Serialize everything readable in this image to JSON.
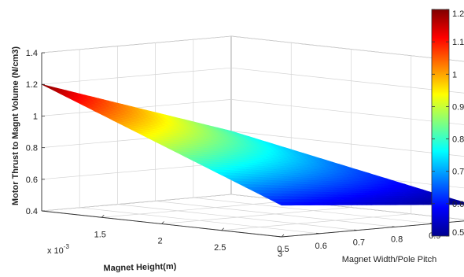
{
  "chart_data": {
    "type": "surface3d",
    "title": "",
    "xlabel": "Magnet Height(m)",
    "x_scale_label": "x 10",
    "x_scale_exponent": "-3",
    "ylabel": "Magnet Width/Pole Pitch",
    "zlabel": "Motor Thrust to Magnt Volume (N/cm3)",
    "x_ticks": [
      "1.5",
      "2",
      "2.5",
      "3"
    ],
    "x_tick_values": [
      1.5,
      2.0,
      2.5,
      3.0
    ],
    "y_ticks": [
      "0.5",
      "0.6",
      "0.7",
      "0.8",
      "0.9"
    ],
    "y_tick_values": [
      0.5,
      0.6,
      0.7,
      0.8,
      0.9
    ],
    "z_ticks": [
      "0.4",
      "0.6",
      "0.8",
      "1",
      "1.2",
      "1.4"
    ],
    "z_tick_values": [
      0.4,
      0.6,
      0.8,
      1.0,
      1.2,
      1.4
    ],
    "xlim": [
      1.0,
      3.0
    ],
    "ylim": [
      0.5,
      1.0
    ],
    "zlim": [
      0.4,
      1.4
    ],
    "x": [
      1.0,
      3.0
    ],
    "y": [
      0.5,
      1.0
    ],
    "z": [
      [
        1.2,
        0.8
      ],
      [
        0.6,
        0.5
      ]
    ],
    "grid": true,
    "colormap": "jet",
    "colorbar": {
      "ticks": [
        "0.5",
        "0.6",
        "0.7",
        "0.8",
        "0.9",
        "1",
        "1.1",
        "1.2"
      ],
      "tick_values": [
        0.5,
        0.6,
        0.7,
        0.8,
        0.9,
        1.0,
        1.1,
        1.2
      ],
      "range": [
        0.5,
        1.2
      ],
      "placement": "right"
    }
  }
}
